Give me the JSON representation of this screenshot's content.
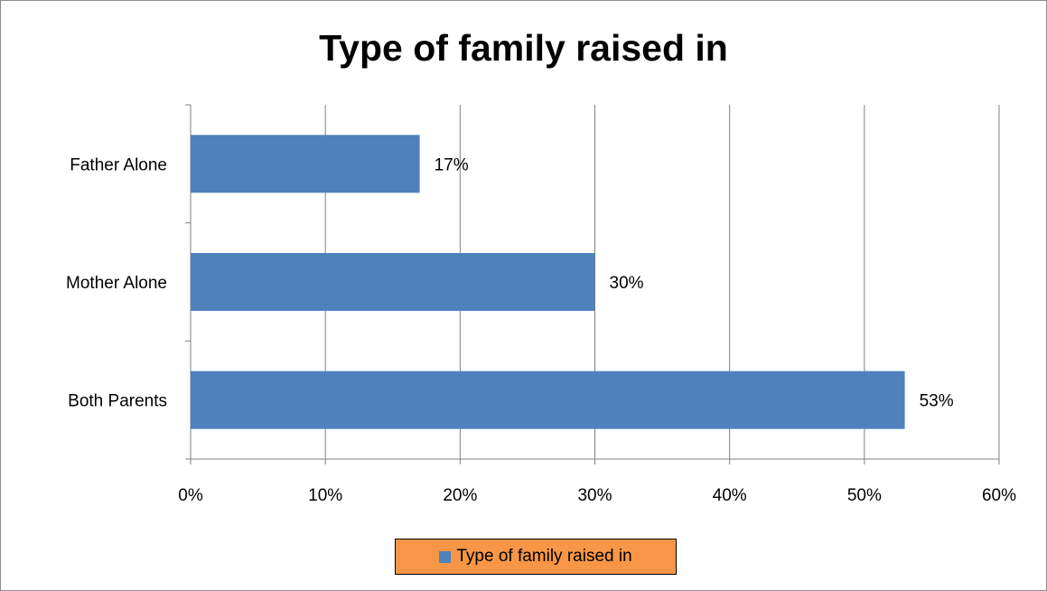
{
  "chart_data": {
    "type": "bar",
    "orientation": "horizontal",
    "title": "Type of family raised in",
    "categories": [
      "Both Parents",
      "Mother Alone",
      "Father Alone"
    ],
    "series": [
      {
        "name": "Type of family raised in",
        "values": [
          53,
          30,
          17
        ],
        "color": "#4f81bd"
      }
    ],
    "data_labels": [
      "53%",
      "30%",
      "17%"
    ],
    "x_ticks": [
      "0%",
      "10%",
      "20%",
      "30%",
      "40%",
      "50%",
      "60%"
    ],
    "xlim": [
      0,
      60
    ],
    "x_unit": "%",
    "grid": "vertical major gridlines",
    "legend_position": "bottom"
  },
  "legend": {
    "label": "Type of family raised in",
    "background": "#f79646",
    "swatch": "#4f81bd"
  },
  "colors": {
    "bar": "#4f81bd",
    "grid": "#808080",
    "legend_bg": "#f79646"
  }
}
